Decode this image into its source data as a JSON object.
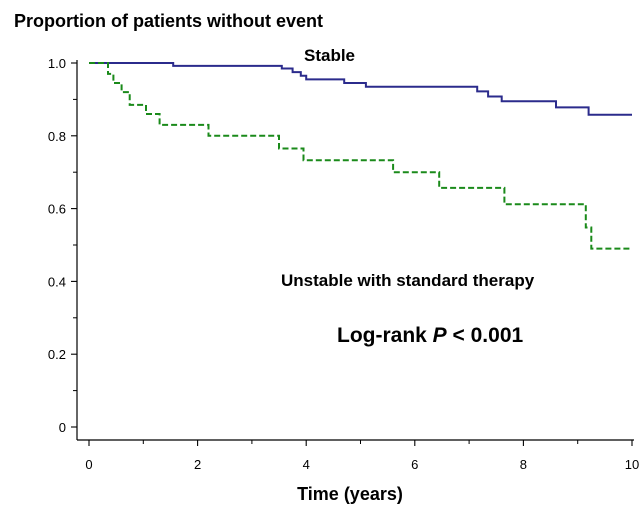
{
  "chart_data": {
    "type": "line",
    "title": "Proportion of patients without event",
    "xlabel": "Time (years)",
    "ylabel": "",
    "xlim": [
      0,
      10
    ],
    "ylim": [
      0,
      1.0
    ],
    "x_ticks": [
      "0",
      "2",
      "4",
      "6",
      "8",
      "10"
    ],
    "y_ticks": [
      "0",
      "0.2",
      "0.4",
      "0.6",
      "0.8",
      "1.0"
    ],
    "step": true,
    "grid": false,
    "series": [
      {
        "name": "Stable",
        "color": "#2b2b8c",
        "line_style": "solid",
        "x": [
          0,
          1.55,
          3.55,
          3.75,
          3.9,
          4.0,
          4.7,
          5.1,
          7.15,
          7.35,
          7.6,
          8.6,
          9.2,
          10.0
        ],
        "y": [
          1.0,
          0.992,
          0.985,
          0.975,
          0.965,
          0.955,
          0.945,
          0.935,
          0.922,
          0.908,
          0.895,
          0.878,
          0.858,
          0.858
        ]
      },
      {
        "name": "Unstable with standard therapy",
        "color": "#1a8a1a",
        "line_style": "dashed",
        "x": [
          0,
          0.35,
          0.45,
          0.6,
          0.75,
          1.05,
          1.3,
          2.2,
          3.5,
          3.95,
          5.6,
          6.45,
          7.65,
          9.15,
          9.25,
          10.0
        ],
        "y": [
          1.0,
          0.97,
          0.945,
          0.92,
          0.885,
          0.86,
          0.83,
          0.8,
          0.765,
          0.733,
          0.7,
          0.657,
          0.612,
          0.548,
          0.49,
          0.49
        ]
      }
    ],
    "annotations": {
      "stable_label": "Stable",
      "unstable_label": "Unstable with standard therapy",
      "logrank_prefix": "Log-rank ",
      "logrank_p": "P",
      "logrank_suffix": " < 0.001"
    }
  }
}
